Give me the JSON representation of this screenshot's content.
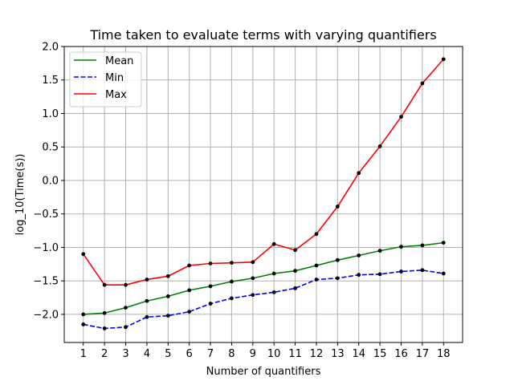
{
  "chart_data": {
    "type": "line",
    "title": "Time taken to evaluate terms with varying quantifiers",
    "xlabel": "Number of quantifiers",
    "ylabel": "log_10(Time(s))",
    "x": [
      1,
      2,
      3,
      4,
      5,
      6,
      7,
      8,
      9,
      10,
      11,
      12,
      13,
      14,
      15,
      16,
      17,
      18
    ],
    "xlim": [
      0.1,
      18.9
    ],
    "ylim": [
      -2.42,
      2.0
    ],
    "yticks": [
      -2.0,
      -1.5,
      -1.0,
      -0.5,
      0.0,
      0.5,
      1.0,
      1.5,
      2.0
    ],
    "ytick_labels": [
      "−2.0",
      "−1.5",
      "−1.0",
      "−0.5",
      "0.0",
      "0.5",
      "1.0",
      "1.5",
      "2.0"
    ],
    "grid": true,
    "legend_position": "top-left",
    "series": [
      {
        "name": "Mean",
        "color": "#008000",
        "style": "solid",
        "values": [
          -2.0,
          -1.98,
          -1.9,
          -1.8,
          -1.73,
          -1.64,
          -1.58,
          -1.51,
          -1.46,
          -1.39,
          -1.35,
          -1.27,
          -1.19,
          -1.12,
          -1.05,
          -0.99,
          -0.97,
          -0.93
        ]
      },
      {
        "name": "Min",
        "color": "#0000ff",
        "style": "dashed",
        "values": [
          -2.15,
          -2.21,
          -2.19,
          -2.04,
          -2.02,
          -1.96,
          -1.84,
          -1.76,
          -1.71,
          -1.67,
          -1.61,
          -1.48,
          -1.46,
          -1.41,
          -1.4,
          -1.36,
          -1.34,
          -1.39
        ]
      },
      {
        "name": "Max",
        "color": "#ff0000",
        "style": "solid",
        "values": [
          -1.1,
          -1.56,
          -1.56,
          -1.48,
          -1.43,
          -1.27,
          -1.24,
          -1.23,
          -1.22,
          -0.95,
          -1.04,
          -0.8,
          -0.39,
          0.11,
          0.51,
          0.95,
          1.45,
          1.81
        ]
      }
    ]
  }
}
